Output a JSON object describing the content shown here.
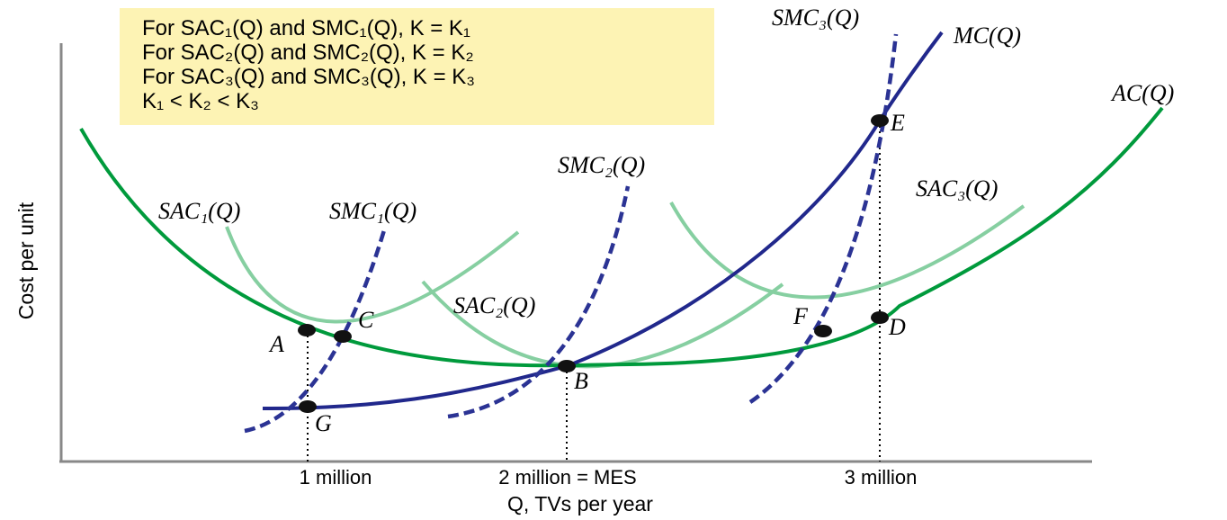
{
  "legend": [
    "For SAC₁(Q) and SMC₁(Q), K = K₁",
    "For SAC₂(Q) and SMC₂(Q), K = K₂",
    "For SAC₃(Q) and SMC₃(Q), K = K₃",
    "K₁ < K₂ < K₃"
  ],
  "axes": {
    "y_title": "Cost per unit",
    "x_title": "Q, TVs per year",
    "ticks": [
      "1 million",
      "2 million = MES",
      "3 million"
    ]
  },
  "curve_labels": {
    "ac": "AC(Q)",
    "mc": "MC(Q)",
    "sac1": "SAC₁(Q)",
    "smc1": "SMC₁(Q)",
    "sac2": "SAC₂(Q)",
    "smc2": "SMC₂(Q)",
    "sac3": "SAC₃(Q)",
    "smc3": "SMC₃(Q)"
  },
  "points": {
    "a": "A",
    "b": "B",
    "c": "C",
    "d": "D",
    "e": "E",
    "f": "F",
    "g": "G"
  },
  "colors": {
    "ac": "#009a3c",
    "sac": "#86cfa1",
    "mc": "#21288c",
    "smc": "#2b3394",
    "legend_bg": "#fdf3b4"
  }
}
